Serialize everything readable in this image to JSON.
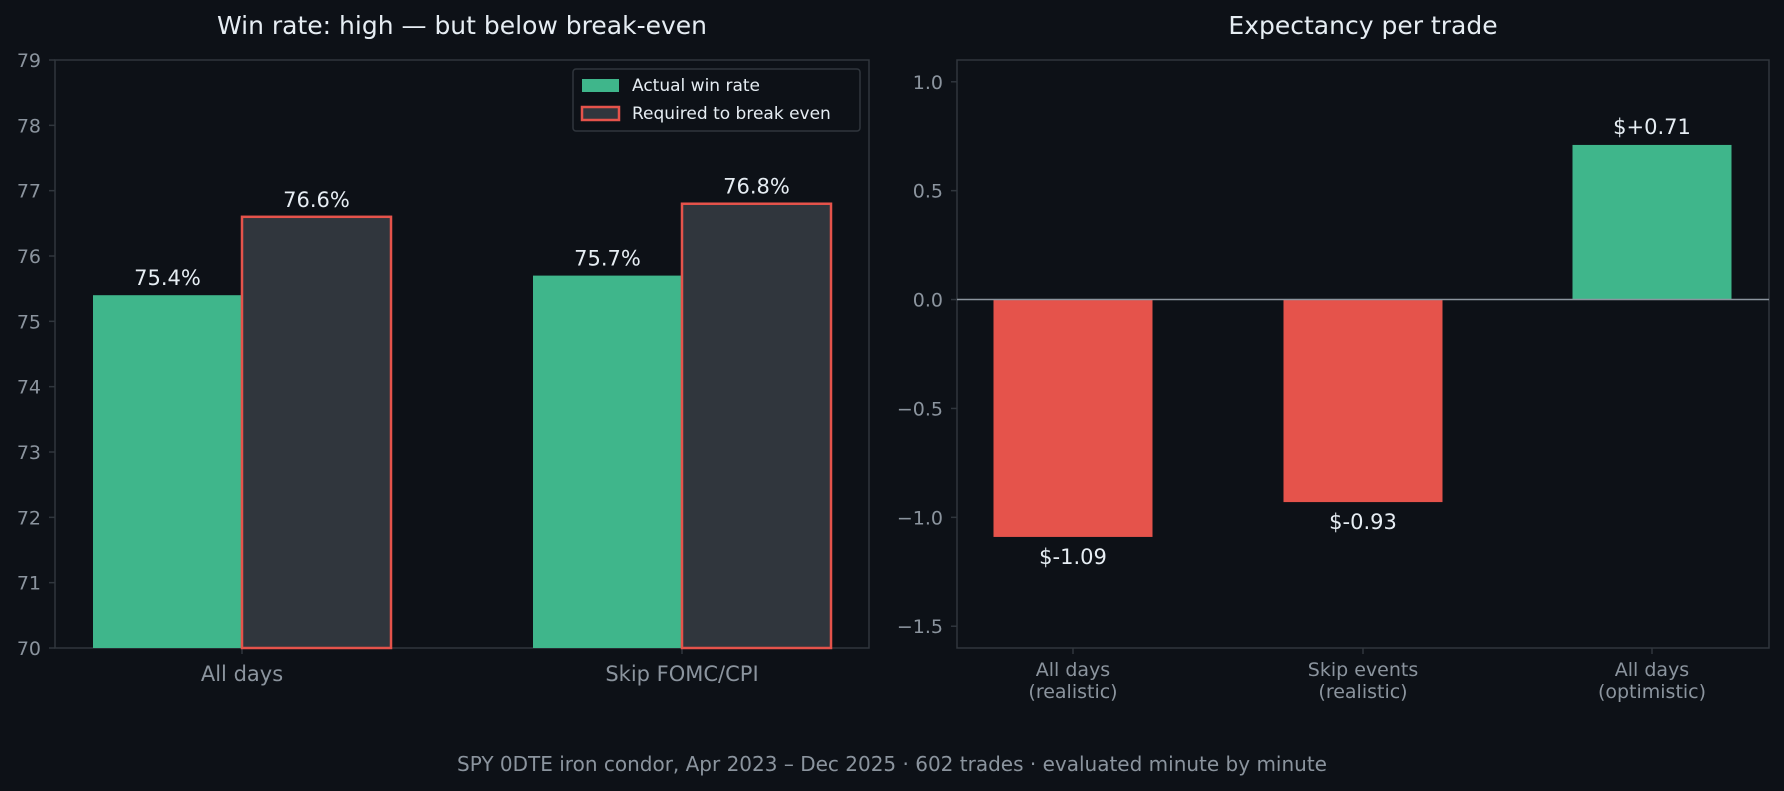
{
  "colors": {
    "background": "#0d1117",
    "text": "#e6edf3",
    "muted_text": "#8b949e",
    "axis": "#30363d",
    "green": "#3fb68b",
    "red": "#e5534b",
    "dark_bar": "#30363d"
  },
  "footer": "SPY 0DTE iron condor, Apr 2023 – Dec 2025 · 602 trades · evaluated minute by minute",
  "chart_data": [
    {
      "type": "bar",
      "title": "Win rate: high — but below break-even",
      "categories": [
        "All days",
        "Skip FOMC/CPI"
      ],
      "series": [
        {
          "name": "Actual win rate",
          "values": [
            75.4,
            75.7
          ],
          "labels": [
            "75.4%",
            "75.7%"
          ],
          "color": "#3fb68b"
        },
        {
          "name": "Required to break even",
          "values": [
            76.6,
            76.8
          ],
          "labels": [
            "76.6%",
            "76.8%"
          ],
          "color": "#30363d",
          "edge": "#e5534b"
        }
      ],
      "ylim": [
        70,
        79
      ],
      "yticks": [
        "70",
        "71",
        "72",
        "73",
        "74",
        "75",
        "76",
        "77",
        "78",
        "79"
      ],
      "legend": "top-right",
      "grid": false
    },
    {
      "type": "bar",
      "title": "Expectancy per trade",
      "categories": [
        [
          "All days",
          "(realistic)"
        ],
        [
          "Skip events",
          "(realistic)"
        ],
        [
          "All days",
          "(optimistic)"
        ]
      ],
      "values": [
        -1.09,
        -0.93,
        0.71
      ],
      "labels": [
        "$-1.09",
        "$-0.93",
        "$+0.71"
      ],
      "colors": [
        "#e5534b",
        "#e5534b",
        "#3fb68b"
      ],
      "ylim": [
        -1.6,
        1.1
      ],
      "yticks": [
        {
          "value": 1.0,
          "label": "1.0"
        },
        {
          "value": 0.5,
          "label": "0.5"
        },
        {
          "value": 0.0,
          "label": "0.0"
        },
        {
          "value": -0.5,
          "label": "−0.5"
        },
        {
          "value": -1.0,
          "label": "−1.0"
        },
        {
          "value": -1.5,
          "label": "−1.5"
        }
      ],
      "zero_line": true,
      "grid": false
    }
  ]
}
